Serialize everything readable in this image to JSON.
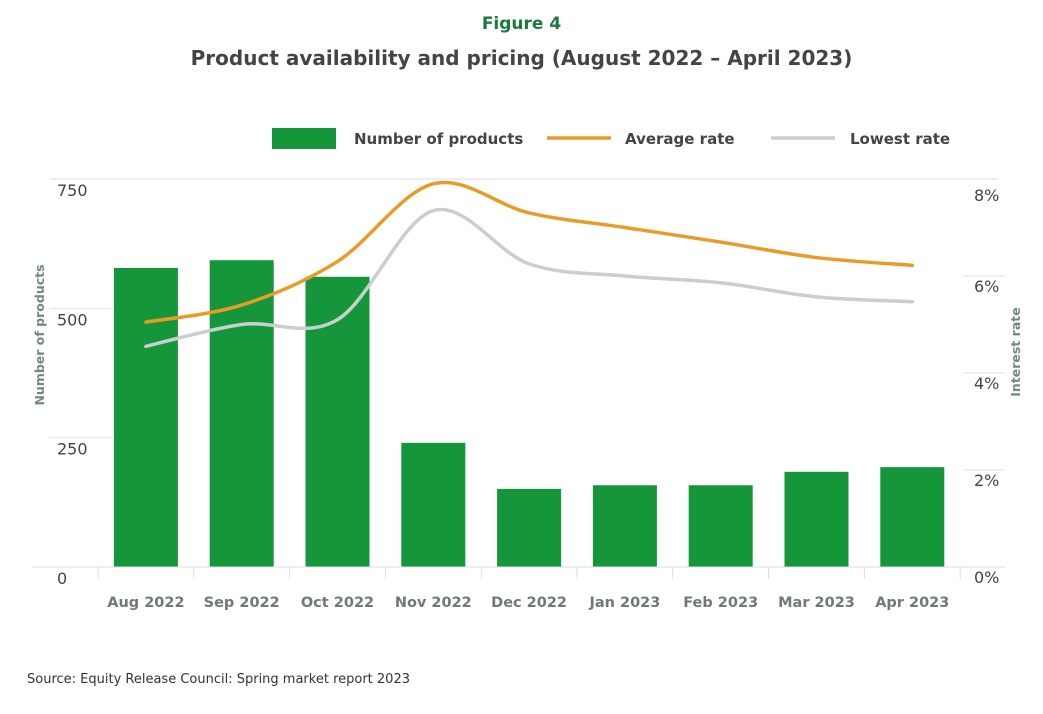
{
  "figure_label": "Figure 4",
  "source": "Source: Equity Release Council: Spring market report 2023",
  "chart_data": {
    "type": "bar+line",
    "title": "Product availability and pricing (August 2022 – April 2023)",
    "categories": [
      "Aug 2022",
      "Sep 2022",
      "Oct 2022",
      "Nov 2022",
      "Dec 2022",
      "Jan 2023",
      "Feb 2023",
      "Mar 2023",
      "Apr 2023"
    ],
    "ylabel_left": "Number of products",
    "ylabel_right": "Interest rate",
    "ylim_left": [
      0,
      750
    ],
    "ylim_right": [
      0,
      8
    ],
    "yticks_left": [
      "0",
      "250",
      "500",
      "750"
    ],
    "yticks_right": [
      "0%",
      "2%",
      "4%",
      "6%",
      "8%"
    ],
    "legend_position": "top-right",
    "series": [
      {
        "name": "Number of products",
        "type": "bar",
        "axis": "left",
        "color": "#16963a",
        "values": [
          578,
          593,
          561,
          240,
          151,
          158,
          158,
          184,
          193
        ]
      },
      {
        "name": "Average rate",
        "type": "line",
        "axis": "right",
        "color": "#e89b27",
        "values": [
          5.05,
          5.4,
          6.3,
          7.9,
          7.3,
          7.0,
          6.7,
          6.38,
          6.22
        ]
      },
      {
        "name": "Lowest rate",
        "type": "line",
        "axis": "right",
        "color": "#c8cfcc",
        "values": [
          4.55,
          5.0,
          5.1,
          7.35,
          6.25,
          6.0,
          5.86,
          5.57,
          5.47
        ]
      }
    ]
  }
}
